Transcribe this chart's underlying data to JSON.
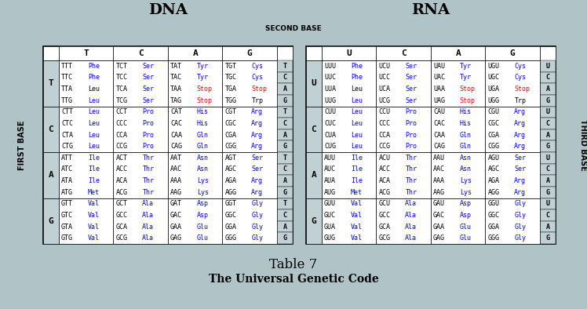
{
  "bg_color": "#b0c4c8",
  "title1": "DNA",
  "title2": "RNA",
  "second_base_label": "SECOND BASE",
  "first_base_label": "FIRST BASE",
  "third_base_label": "THIRD BASE",
  "caption1": "Table 7",
  "caption2": "The Universal Genetic Code",
  "dna_col_headers": [
    "T",
    "C",
    "A",
    "G"
  ],
  "rna_col_headers": [
    "U",
    "C",
    "A",
    "G"
  ],
  "row_headers": [
    "T",
    "C",
    "A",
    "G"
  ],
  "rna_row_headers": [
    "U",
    "C",
    "A",
    "G"
  ],
  "third_base_dna": [
    [
      "T",
      "C",
      "A",
      "G"
    ],
    [
      "T",
      "C",
      "A",
      "G"
    ],
    [
      "T",
      "C",
      "A",
      "G"
    ],
    [
      "T",
      "C",
      "A",
      "G"
    ]
  ],
  "third_base_rna": [
    [
      "U",
      "C",
      "A",
      "G"
    ],
    [
      "U",
      "C",
      "A",
      "G"
    ],
    [
      "U",
      "C",
      "A",
      "G"
    ],
    [
      "U",
      "C",
      "A",
      "G"
    ]
  ],
  "dna_cells": [
    [
      [
        [
          "TTT",
          "Phe",
          "blue"
        ],
        [
          "TTC",
          "Phe",
          "blue"
        ],
        [
          "TTA",
          "Leu",
          "black"
        ],
        [
          "TTG",
          "Leu",
          "blue"
        ]
      ],
      [
        [
          "TCT",
          "Ser",
          "blue"
        ],
        [
          "TCC",
          "Ser",
          "blue"
        ],
        [
          "TCA",
          "Ser",
          "blue"
        ],
        [
          "TCG",
          "Ser",
          "blue"
        ]
      ],
      [
        [
          "TAT",
          "Tyr",
          "blue"
        ],
        [
          "TAC",
          "Tyr",
          "blue"
        ],
        [
          "TAA",
          "Stop",
          "red"
        ],
        [
          "TAG",
          "Stop",
          "red"
        ]
      ],
      [
        [
          "TGT",
          "Cys",
          "blue"
        ],
        [
          "TGC",
          "Cys",
          "blue"
        ],
        [
          "TGA",
          "Stop",
          "red"
        ],
        [
          "TGG",
          "Trp",
          "black"
        ]
      ]
    ],
    [
      [
        [
          "CTT",
          "Leu",
          "blue"
        ],
        [
          "CTC",
          "Leu",
          "blue"
        ],
        [
          "CTA",
          "Leu",
          "blue"
        ],
        [
          "CTG",
          "Leu",
          "blue"
        ]
      ],
      [
        [
          "CCT",
          "Pro",
          "blue"
        ],
        [
          "CCC",
          "Pro",
          "blue"
        ],
        [
          "CCA",
          "Pro",
          "blue"
        ],
        [
          "CCG",
          "Pro",
          "blue"
        ]
      ],
      [
        [
          "CAT",
          "His",
          "blue"
        ],
        [
          "CAC",
          "His",
          "blue"
        ],
        [
          "CAA",
          "Gln",
          "blue"
        ],
        [
          "CAG",
          "Gln",
          "blue"
        ]
      ],
      [
        [
          "CGT",
          "Arg",
          "blue"
        ],
        [
          "CGC",
          "Arg",
          "blue"
        ],
        [
          "CGA",
          "Arg",
          "blue"
        ],
        [
          "CGG",
          "Arg",
          "blue"
        ]
      ]
    ],
    [
      [
        [
          "ATT",
          "Ile",
          "blue"
        ],
        [
          "ATC",
          "Ile",
          "blue"
        ],
        [
          "ATA",
          "Ile",
          "blue"
        ],
        [
          "ATG",
          "Met",
          "blue"
        ]
      ],
      [
        [
          "ACT",
          "Thr",
          "blue"
        ],
        [
          "ACC",
          "Thr",
          "blue"
        ],
        [
          "ACA",
          "Thr",
          "blue"
        ],
        [
          "ACG",
          "Thr",
          "blue"
        ]
      ],
      [
        [
          "AAT",
          "Asn",
          "blue"
        ],
        [
          "AAC",
          "Asn",
          "blue"
        ],
        [
          "AAA",
          "Lys",
          "blue"
        ],
        [
          "AAG",
          "Lys",
          "blue"
        ]
      ],
      [
        [
          "AGT",
          "Ser",
          "blue"
        ],
        [
          "AGC",
          "Ser",
          "blue"
        ],
        [
          "AGA",
          "Arg",
          "blue"
        ],
        [
          "AGG",
          "Arg",
          "blue"
        ]
      ]
    ],
    [
      [
        [
          "GTT",
          "Val",
          "blue"
        ],
        [
          "GTC",
          "Val",
          "blue"
        ],
        [
          "GTA",
          "Val",
          "blue"
        ],
        [
          "GTG",
          "Val",
          "blue"
        ]
      ],
      [
        [
          "GCT",
          "Ala",
          "blue"
        ],
        [
          "GCC",
          "Ala",
          "blue"
        ],
        [
          "GCA",
          "Ala",
          "blue"
        ],
        [
          "GCG",
          "Ala",
          "blue"
        ]
      ],
      [
        [
          "GAT",
          "Asp",
          "blue"
        ],
        [
          "GAC",
          "Asp",
          "blue"
        ],
        [
          "GAA",
          "Glu",
          "blue"
        ],
        [
          "GAG",
          "Glu",
          "blue"
        ]
      ],
      [
        [
          "GGT",
          "Gly",
          "blue"
        ],
        [
          "GGC",
          "Gly",
          "blue"
        ],
        [
          "GGA",
          "Gly",
          "blue"
        ],
        [
          "GGG",
          "Gly",
          "blue"
        ]
      ]
    ]
  ],
  "rna_cells": [
    [
      [
        [
          "UUU",
          "Phe",
          "blue"
        ],
        [
          "UUC",
          "Phe",
          "blue"
        ],
        [
          "UUA",
          "Leu",
          "black"
        ],
        [
          "UUG",
          "Leu",
          "blue"
        ]
      ],
      [
        [
          "UCU",
          "Ser",
          "blue"
        ],
        [
          "UCC",
          "Ser",
          "blue"
        ],
        [
          "UCA",
          "Ser",
          "blue"
        ],
        [
          "UCG",
          "Ser",
          "blue"
        ]
      ],
      [
        [
          "UAU",
          "Tyr",
          "blue"
        ],
        [
          "UAC",
          "Tyr",
          "blue"
        ],
        [
          "UAA",
          "Stop",
          "red"
        ],
        [
          "UAG",
          "Stop",
          "red"
        ]
      ],
      [
        [
          "UGU",
          "Cys",
          "blue"
        ],
        [
          "UGC",
          "Cys",
          "blue"
        ],
        [
          "UGA",
          "Stop",
          "red"
        ],
        [
          "UGG",
          "Trp",
          "black"
        ]
      ]
    ],
    [
      [
        [
          "CUU",
          "Leu",
          "blue"
        ],
        [
          "CUC",
          "Leu",
          "blue"
        ],
        [
          "CUA",
          "Leu",
          "blue"
        ],
        [
          "CUG",
          "Leu",
          "blue"
        ]
      ],
      [
        [
          "CCU",
          "Pro",
          "blue"
        ],
        [
          "CCC",
          "Pro",
          "blue"
        ],
        [
          "CCA",
          "Pro",
          "blue"
        ],
        [
          "CCG",
          "Pro",
          "blue"
        ]
      ],
      [
        [
          "CAU",
          "His",
          "blue"
        ],
        [
          "CAC",
          "His",
          "blue"
        ],
        [
          "CAA",
          "Gln",
          "blue"
        ],
        [
          "CAG",
          "Gln",
          "blue"
        ]
      ],
      [
        [
          "CGU",
          "Arg",
          "blue"
        ],
        [
          "CGC",
          "Arg",
          "blue"
        ],
        [
          "CGA",
          "Arg",
          "blue"
        ],
        [
          "CGG",
          "Arg",
          "blue"
        ]
      ]
    ],
    [
      [
        [
          "AUU",
          "Ile",
          "blue"
        ],
        [
          "AUC",
          "Ile",
          "blue"
        ],
        [
          "AUA",
          "Ile",
          "blue"
        ],
        [
          "AUG",
          "Met",
          "blue"
        ]
      ],
      [
        [
          "ACU",
          "Thr",
          "blue"
        ],
        [
          "ACC",
          "Thr",
          "blue"
        ],
        [
          "ACA",
          "Thr",
          "blue"
        ],
        [
          "ACG",
          "Thr",
          "blue"
        ]
      ],
      [
        [
          "AAU",
          "Asn",
          "blue"
        ],
        [
          "AAC",
          "Asn",
          "blue"
        ],
        [
          "AAA",
          "Lys",
          "blue"
        ],
        [
          "AAG",
          "Lys",
          "blue"
        ]
      ],
      [
        [
          "AGU",
          "Ser",
          "blue"
        ],
        [
          "AGC",
          "Ser",
          "blue"
        ],
        [
          "AGA",
          "Arg",
          "blue"
        ],
        [
          "AGG",
          "Arg",
          "blue"
        ]
      ]
    ],
    [
      [
        [
          "GUU",
          "Val",
          "blue"
        ],
        [
          "GUC",
          "Val",
          "blue"
        ],
        [
          "GUA",
          "Val",
          "blue"
        ],
        [
          "GUG",
          "Val",
          "blue"
        ]
      ],
      [
        [
          "GCU",
          "Ala",
          "blue"
        ],
        [
          "GCC",
          "Ala",
          "blue"
        ],
        [
          "GCA",
          "Ala",
          "blue"
        ],
        [
          "GCG",
          "Ala",
          "blue"
        ]
      ],
      [
        [
          "GAU",
          "Asp",
          "blue"
        ],
        [
          "GAC",
          "Asp",
          "blue"
        ],
        [
          "GAA",
          "Glu",
          "blue"
        ],
        [
          "GAG",
          "Glu",
          "blue"
        ]
      ],
      [
        [
          "GGU",
          "Gly",
          "blue"
        ],
        [
          "GGC",
          "Gly",
          "blue"
        ],
        [
          "GGA",
          "Gly",
          "blue"
        ],
        [
          "GGG",
          "Gly",
          "blue"
        ]
      ]
    ]
  ]
}
